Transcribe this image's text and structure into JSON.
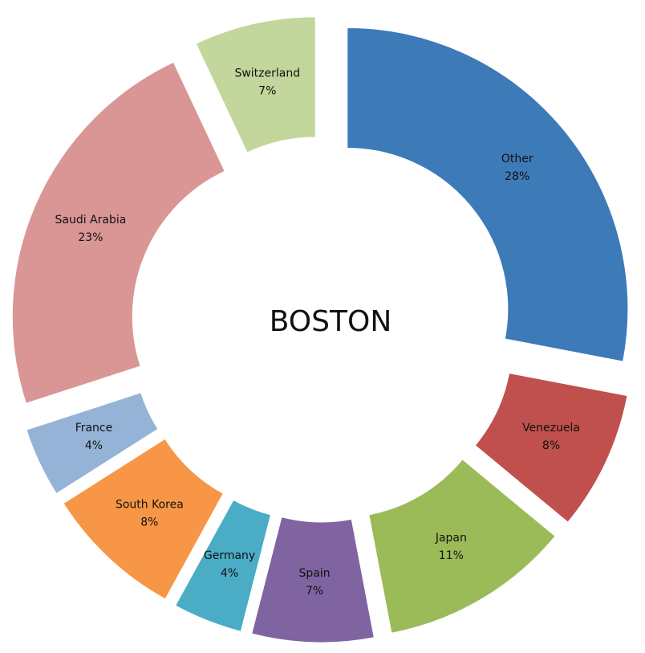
{
  "chart_data": {
    "type": "donut",
    "title": "BOSTON",
    "categories": [
      "Other",
      "Venezuela",
      "Japan",
      "Spain",
      "Germany",
      "South Korea",
      "France",
      "Saudi Arabia",
      "Switzerland"
    ],
    "values": [
      28,
      8,
      11,
      7,
      4,
      8,
      4,
      23,
      7
    ],
    "value_labels": [
      "28%",
      "8%",
      "11%",
      "7%",
      "4%",
      "8%",
      "4%",
      "23%",
      "7%"
    ],
    "colors": [
      "#3d7ab8",
      "#c0504d",
      "#9bbb59",
      "#8064a2",
      "#4bacc6",
      "#f79646",
      "#95b3d7",
      "#d99694",
      "#c3d69b"
    ]
  }
}
